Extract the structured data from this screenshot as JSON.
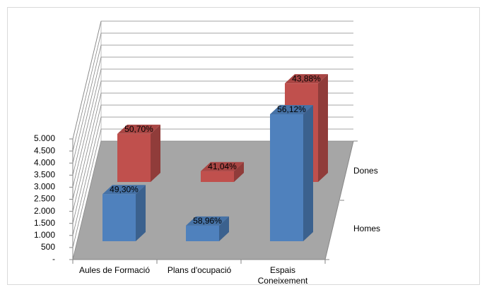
{
  "chart_data": {
    "type": "bar3d",
    "categories": [
      "Aules de Formació",
      "Plans d'ocupació",
      "Espais Coneixement"
    ],
    "series": [
      {
        "name": "Homes",
        "color": "#4f81bd",
        "values": [
          1780,
          590,
          4800
        ],
        "share_labels": [
          "49,30%",
          "58,96%",
          "56,12%"
        ]
      },
      {
        "name": "Dones",
        "color": "#c0504d",
        "values": [
          1830,
          410,
          3750
        ],
        "share_labels": [
          "50,70%",
          "41,04%",
          "43,88%"
        ]
      }
    ],
    "ylim": [
      0,
      5000
    ],
    "yticks": [
      {
        "value": 0,
        "label": "-"
      },
      500,
      {
        "value": 1000,
        "label": "1.000"
      },
      {
        "value": 1500,
        "label": "1.500"
      },
      {
        "value": 2000,
        "label": "2.000"
      },
      {
        "value": 2500,
        "label": "2.500"
      },
      {
        "value": 3000,
        "label": "3.000"
      },
      {
        "value": 3500,
        "label": "3.500"
      },
      {
        "value": 4000,
        "label": "4.000"
      },
      {
        "value": 4500,
        "label": "4.500"
      },
      {
        "value": 5000,
        "label": "5.000"
      }
    ],
    "grid": true
  }
}
